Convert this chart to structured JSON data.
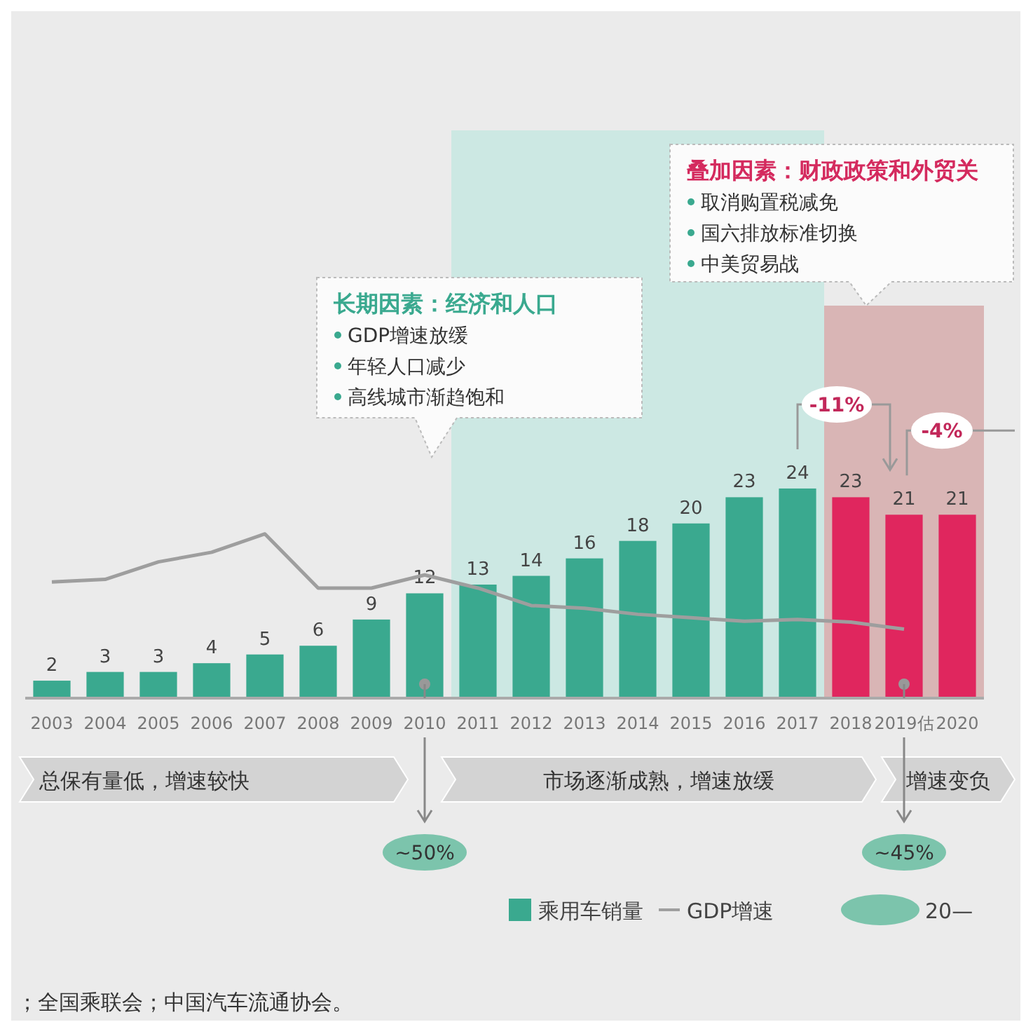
{
  "chart_data": {
    "type": "bar",
    "categories": [
      "2003",
      "2004",
      "2005",
      "2006",
      "2007",
      "2008",
      "2009",
      "2010",
      "2011",
      "2012",
      "2013",
      "2014",
      "2015",
      "2016",
      "2017",
      "2018",
      "2019估",
      "2020"
    ],
    "series": [
      {
        "name": "乘用车销量",
        "colors": [
          "#3aa98f",
          "#3aa98f",
          "#3aa98f",
          "#3aa98f",
          "#3aa98f",
          "#3aa98f",
          "#3aa98f",
          "#3aa98f",
          "#3aa98f",
          "#3aa98f",
          "#3aa98f",
          "#3aa98f",
          "#3aa98f",
          "#3aa98f",
          "#3aa98f",
          "#e0265e",
          "#e0265e",
          "#e0265e"
        ],
        "values": [
          2,
          3,
          3,
          4,
          5,
          6,
          9,
          12,
          13,
          14,
          16,
          18,
          20,
          23,
          24,
          23,
          21,
          21
        ],
        "value_labels": [
          "2",
          "3",
          "3",
          "4",
          "5",
          "6",
          "9",
          "12",
          "13",
          "14",
          "16",
          "18",
          "20",
          "23",
          "24",
          "23",
          "21",
          "21"
        ]
      },
      {
        "name": "GDP增速",
        "type": "line",
        "color": "#9e9e9e",
        "values": [
          13.3,
          13.6,
          15.6,
          16.7,
          18.8,
          12.6,
          12.6,
          14.1,
          12.6,
          10.6,
          10.3,
          9.6,
          9.2,
          8.8,
          9.0,
          8.7,
          7.9,
          null
        ]
      }
    ],
    "ylim": [
      0,
      65
    ],
    "tick_labels": "x",
    "legend": "bottom right",
    "bands": [
      {
        "axis": "x",
        "from": "2011",
        "to": "2017",
        "color": "#cce8e3"
      },
      {
        "axis": "x",
        "from": "2018",
        "to": "2020",
        "color": "#d9b5b5"
      }
    ],
    "annotations": [
      "总保有量低，增速较快",
      "市场逐渐成熟，增速放缓",
      "增速变负",
      "长期因素：经济和人口",
      "GDP增速放缓",
      "年轻人口减少",
      "高线城市渐趋饱和",
      "叠加因素：财政政策和外贸关",
      "取消购置税减免",
      "国六排放标准切换",
      "中美贸易战",
      "-11%",
      "-4%",
      "~50%",
      "~45%",
      "20—",
      "；全国乘联会；中国汽车流通协会。"
    ]
  }
}
